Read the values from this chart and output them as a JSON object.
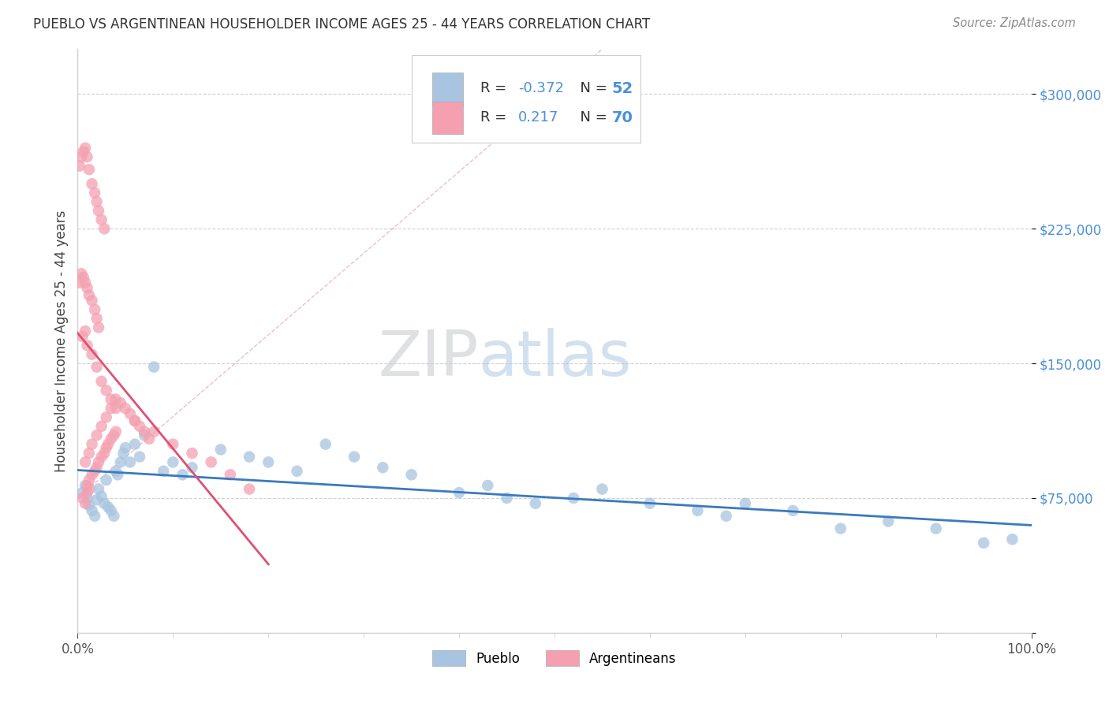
{
  "title": "PUEBLO VS ARGENTINEAN HOUSEHOLDER INCOME AGES 25 - 44 YEARS CORRELATION CHART",
  "source": "Source: ZipAtlas.com",
  "ylabel": "Householder Income Ages 25 - 44 years",
  "watermark_zip": "ZIP",
  "watermark_atlas": "atlas",
  "xlim": [
    0.0,
    1.0
  ],
  "ylim": [
    0,
    325000
  ],
  "yticks": [
    0,
    75000,
    150000,
    225000,
    300000
  ],
  "ytick_labels": [
    "",
    "$75,000",
    "$150,000",
    "$225,000",
    "$300,000"
  ],
  "xtick_labels": [
    "0.0%",
    "100.0%"
  ],
  "legend_pueblo_R": "-0.372",
  "legend_pueblo_N": "52",
  "legend_arg_R": "0.217",
  "legend_arg_N": "70",
  "pueblo_color": "#a8c4e0",
  "arg_color": "#f4a0b0",
  "pueblo_line_color": "#3a7abf",
  "arg_line_color": "#e05070",
  "diag_color": "#d0b0b8",
  "pueblo_scatter_x": [
    0.005,
    0.008,
    0.01,
    0.012,
    0.015,
    0.018,
    0.02,
    0.022,
    0.025,
    0.028,
    0.03,
    0.032,
    0.035,
    0.038,
    0.04,
    0.042,
    0.045,
    0.048,
    0.05,
    0.055,
    0.06,
    0.065,
    0.07,
    0.08,
    0.09,
    0.1,
    0.11,
    0.12,
    0.15,
    0.18,
    0.2,
    0.23,
    0.26,
    0.29,
    0.32,
    0.35,
    0.4,
    0.43,
    0.45,
    0.48,
    0.52,
    0.55,
    0.6,
    0.65,
    0.68,
    0.7,
    0.75,
    0.8,
    0.85,
    0.9,
    0.95,
    0.98
  ],
  "pueblo_scatter_y": [
    78000,
    82000,
    75000,
    71000,
    68000,
    65000,
    74000,
    80000,
    76000,
    72000,
    85000,
    70000,
    68000,
    65000,
    90000,
    88000,
    95000,
    100000,
    103000,
    95000,
    105000,
    98000,
    110000,
    148000,
    90000,
    95000,
    88000,
    92000,
    102000,
    98000,
    95000,
    90000,
    105000,
    98000,
    92000,
    88000,
    78000,
    82000,
    75000,
    72000,
    75000,
    80000,
    72000,
    68000,
    65000,
    72000,
    68000,
    58000,
    62000,
    58000,
    50000,
    52000
  ],
  "arg_scatter_x": [
    0.005,
    0.008,
    0.01,
    0.012,
    0.01,
    0.012,
    0.015,
    0.018,
    0.02,
    0.022,
    0.025,
    0.028,
    0.03,
    0.032,
    0.035,
    0.038,
    0.04,
    0.008,
    0.012,
    0.015,
    0.02,
    0.025,
    0.03,
    0.035,
    0.04,
    0.045,
    0.05,
    0.055,
    0.06,
    0.065,
    0.07,
    0.075,
    0.002,
    0.004,
    0.006,
    0.008,
    0.01,
    0.012,
    0.015,
    0.018,
    0.02,
    0.022,
    0.025,
    0.028,
    0.002,
    0.004,
    0.006,
    0.008,
    0.01,
    0.012,
    0.015,
    0.018,
    0.02,
    0.022,
    0.005,
    0.008,
    0.01,
    0.015,
    0.02,
    0.025,
    0.03,
    0.035,
    0.04,
    0.06,
    0.08,
    0.1,
    0.12,
    0.14,
    0.16,
    0.18
  ],
  "arg_scatter_y": [
    75000,
    72000,
    78000,
    80000,
    82000,
    85000,
    88000,
    90000,
    92000,
    95000,
    98000,
    100000,
    103000,
    105000,
    108000,
    110000,
    112000,
    95000,
    100000,
    105000,
    110000,
    115000,
    120000,
    125000,
    130000,
    128000,
    125000,
    122000,
    118000,
    115000,
    112000,
    108000,
    260000,
    265000,
    268000,
    270000,
    265000,
    258000,
    250000,
    245000,
    240000,
    235000,
    230000,
    225000,
    195000,
    200000,
    198000,
    195000,
    192000,
    188000,
    185000,
    180000,
    175000,
    170000,
    165000,
    168000,
    160000,
    155000,
    148000,
    140000,
    135000,
    130000,
    125000,
    118000,
    112000,
    105000,
    100000,
    95000,
    88000,
    80000
  ]
}
